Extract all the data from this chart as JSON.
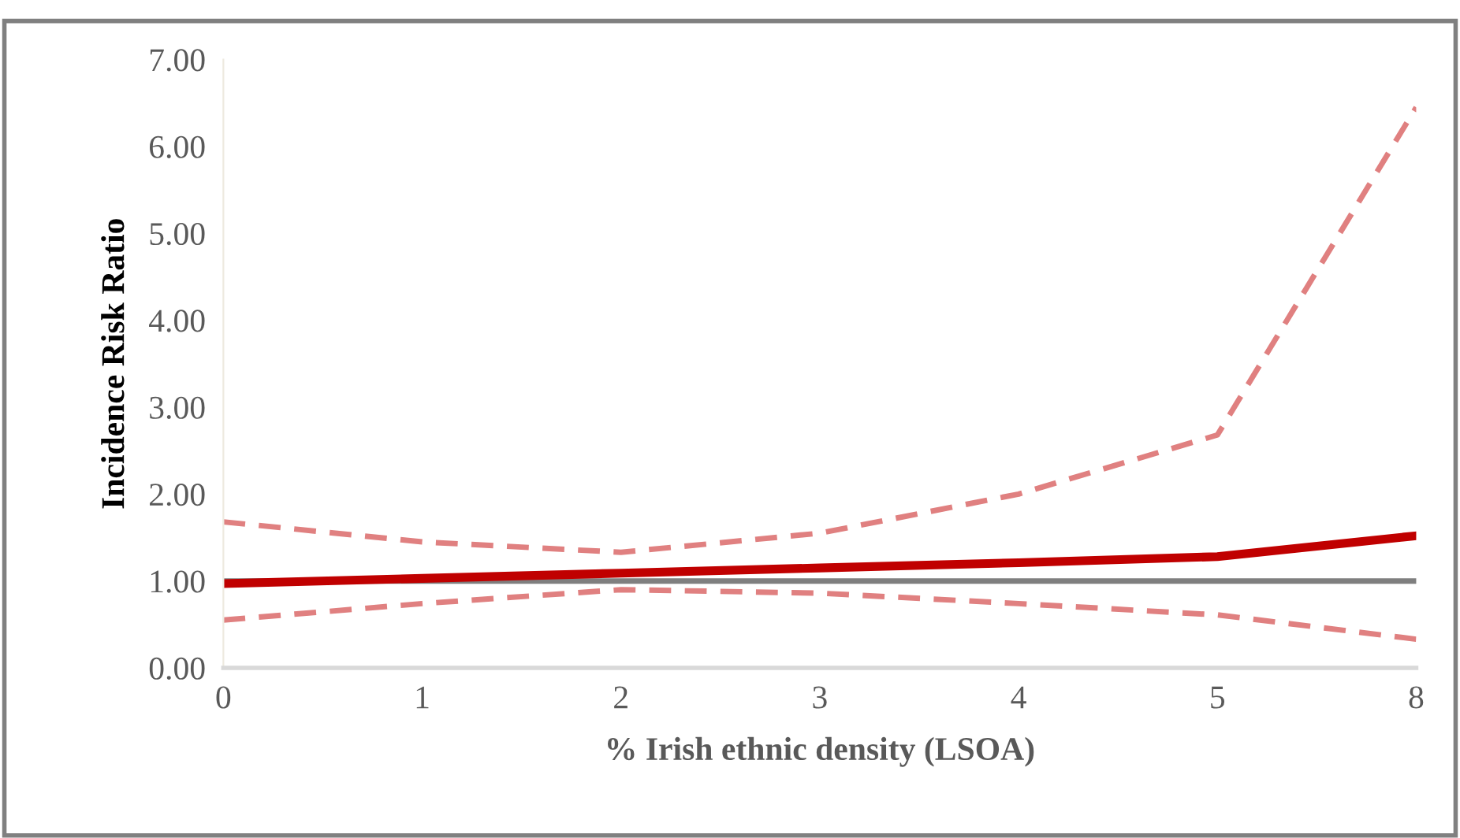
{
  "chart_data": {
    "type": "line",
    "xlabel": "% Irish ethnic density (LSOA)",
    "ylabel": "Incidence Risk Ratio",
    "categories": [
      "0",
      "1",
      "2",
      "3",
      "4",
      "5",
      "8"
    ],
    "series": [
      {
        "color": "#e08080",
        "line_style": "dashed",
        "values": [
          1.68,
          1.45,
          1.33,
          1.55,
          2.0,
          2.68,
          6.45
        ]
      },
      {
        "color": "#e08080",
        "line_style": "dashed",
        "values": [
          0.55,
          0.74,
          0.9,
          0.86,
          0.74,
          0.61,
          0.33
        ]
      },
      {
        "color": "#7f7f7f",
        "line_style": "solid",
        "values": [
          1.0,
          1.0,
          1.0,
          1.0,
          1.0,
          1.0,
          1.0
        ]
      },
      {
        "color": "#c00000",
        "line_style": "solid",
        "values": [
          0.97,
          1.03,
          1.09,
          1.15,
          1.21,
          1.28,
          1.52
        ]
      }
    ],
    "ylim": [
      0,
      7
    ],
    "yticks": [
      {
        "value": 0,
        "label": "0.00"
      },
      {
        "value": 1,
        "label": "1.00"
      },
      {
        "value": 2,
        "label": "2.00"
      },
      {
        "value": 3,
        "label": "3.00"
      },
      {
        "value": 4,
        "label": "4.00"
      },
      {
        "value": 5,
        "label": "5.00"
      },
      {
        "value": 6,
        "label": "6.00"
      },
      {
        "value": 7,
        "label": "7.00"
      }
    ],
    "grid": false,
    "legend": false,
    "marker": "none"
  }
}
